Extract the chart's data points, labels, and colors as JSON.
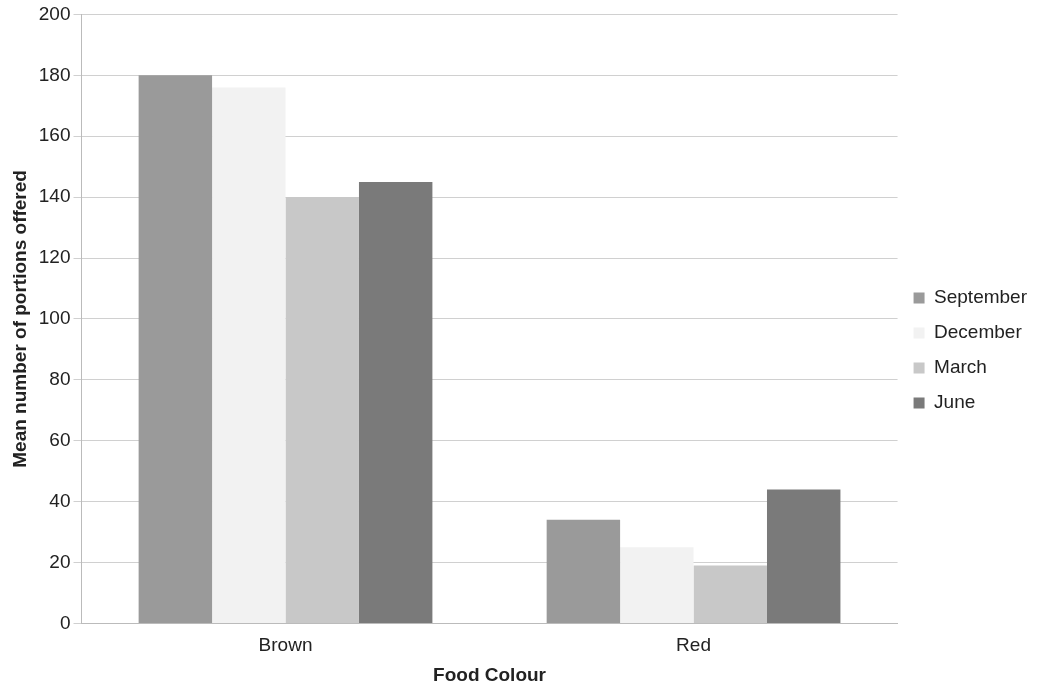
{
  "chart_data": {
    "type": "bar",
    "xlabel": "Food Colour",
    "ylabel": "Mean number of portions offered",
    "categories": [
      "Brown",
      "Red"
    ],
    "series": [
      {
        "name": "September",
        "color": "#9a9a9a",
        "values": [
          180,
          34
        ]
      },
      {
        "name": "December",
        "color": "#f2f2f2",
        "values": [
          176,
          25
        ]
      },
      {
        "name": "March",
        "color": "#c8c8c8",
        "values": [
          140,
          19
        ]
      },
      {
        "name": "June",
        "color": "#7a7a7a",
        "values": [
          145,
          44
        ]
      }
    ],
    "ylim": [
      0,
      200
    ],
    "yticks": [
      0,
      20,
      40,
      60,
      80,
      100,
      120,
      140,
      160,
      180,
      200
    ],
    "grid": "y",
    "legend": "right"
  }
}
